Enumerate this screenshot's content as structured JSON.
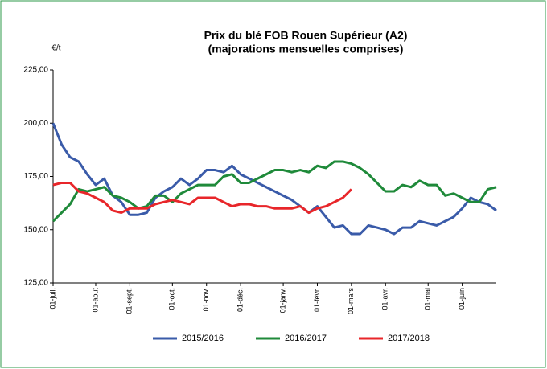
{
  "chart_data": {
    "type": "line",
    "title": [
      "Prix du blé FOB Rouen Supérieur (A2)",
      "(majorations mensuelles comprises)"
    ],
    "y_label": "€/t",
    "categories": [
      "01-juil.",
      null,
      null,
      null,
      null,
      "01-août",
      null,
      null,
      null,
      "01-sept.",
      null,
      null,
      null,
      null,
      "01-oct.",
      null,
      null,
      null,
      "01-nov.",
      null,
      null,
      null,
      "01-déc.",
      null,
      null,
      null,
      null,
      "01-janv.",
      null,
      null,
      null,
      "01-févr.",
      null,
      null,
      null,
      "01-mars",
      null,
      null,
      null,
      "01-avr.",
      null,
      null,
      null,
      null,
      "01-mai",
      null,
      null,
      null,
      "01-juin",
      null,
      null,
      null,
      null
    ],
    "series": [
      {
        "name": "2015/2016",
        "color": "#3a5ba9",
        "values": [
          200,
          190,
          184,
          182,
          176,
          171,
          174,
          166,
          163,
          157,
          157,
          158,
          165,
          168,
          170,
          174,
          171,
          174,
          178,
          178,
          177,
          180,
          176,
          174,
          172,
          170,
          168,
          166,
          164,
          161,
          158,
          161,
          156,
          151,
          152,
          148,
          148,
          152,
          151,
          150,
          148,
          151,
          151,
          154,
          153,
          152,
          154,
          156,
          160,
          165,
          163,
          162,
          159
        ]
      },
      {
        "name": "2016/2017",
        "color": "#1f8a3a",
        "values": [
          154,
          158,
          162,
          169,
          168,
          169,
          170,
          166,
          165,
          163,
          160,
          161,
          166,
          166,
          163,
          167,
          169,
          171,
          171,
          171,
          175,
          176,
          172,
          172,
          174,
          176,
          178,
          178,
          177,
          178,
          177,
          180,
          179,
          182,
          182,
          181,
          179,
          176,
          172,
          168,
          168,
          171,
          170,
          173,
          171,
          171,
          166,
          167,
          165,
          163,
          163,
          169,
          170
        ]
      },
      {
        "name": "2017/2018",
        "color": "#e8262a",
        "values": [
          171,
          172,
          172,
          168,
          167,
          165,
          163,
          159,
          158,
          160,
          160,
          160,
          162,
          163,
          164,
          163,
          162,
          165,
          165,
          165,
          163,
          161,
          162,
          162,
          161,
          161,
          160,
          160,
          160,
          161,
          158,
          160,
          161,
          163,
          165,
          169,
          null,
          null,
          null,
          null,
          null,
          null,
          null,
          null,
          null,
          null,
          null,
          null,
          null,
          null,
          null,
          null,
          null
        ]
      }
    ],
    "ylim": [
      125,
      225
    ],
    "yticks": [
      {
        "value": 125,
        "label": "125,00"
      },
      {
        "value": 150,
        "label": "150,00"
      },
      {
        "value": 175,
        "label": "175,00"
      },
      {
        "value": 200,
        "label": "200,00"
      },
      {
        "value": 225,
        "label": "225,00"
      }
    ],
    "grid": false,
    "legend": "bottom"
  }
}
